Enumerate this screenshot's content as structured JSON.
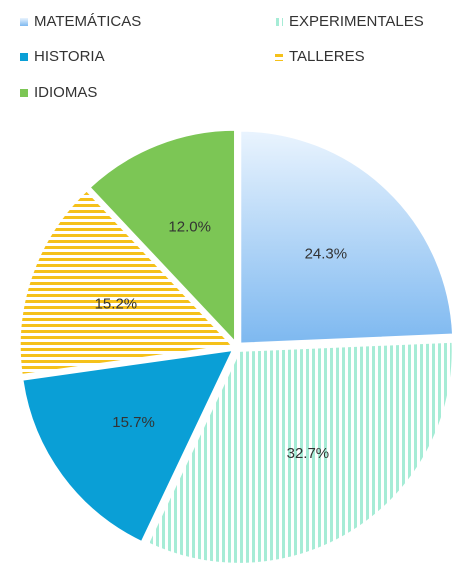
{
  "chart_data": {
    "type": "pie",
    "categories": [
      "MATEMÁTICAS",
      "EXPERIMENTALES",
      "HISTORIA",
      "TALLERES",
      "IDIOMAS"
    ],
    "values": [
      24.3,
      32.7,
      15.7,
      15.2,
      12.0
    ],
    "value_labels": [
      "24.3%",
      "32.7%",
      "15.7%",
      "15.2%",
      "12.0%"
    ],
    "colors": [
      "#8ec3f2",
      "#a6ecd6",
      "#0a9fd6",
      "#f5c11a",
      "#7cc655"
    ],
    "patterns": [
      "gradient",
      "vertical-stripes",
      "solid",
      "horizontal-stripes",
      "solid"
    ],
    "legend": "top"
  }
}
